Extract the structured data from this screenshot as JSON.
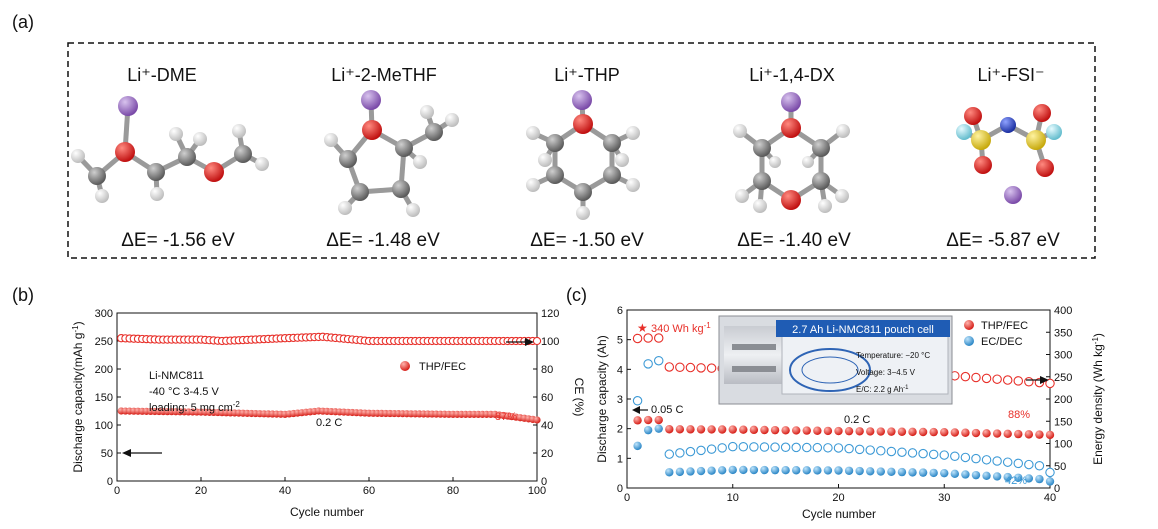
{
  "panel_a": {
    "label": "(a)",
    "molecules": [
      {
        "name": "Li⁺-DME",
        "energy": "ΔE= -1.56 eV",
        "icon": "dme-molecule"
      },
      {
        "name": "Li⁺-2-MeTHF",
        "energy": "ΔE= -1.48 eV",
        "icon": "methf-molecule"
      },
      {
        "name": "Li⁺-THP",
        "energy": "ΔE= -1.50 eV",
        "icon": "thp-molecule"
      },
      {
        "name": "Li⁺-1,4-DX",
        "energy": "ΔE= -1.40 eV",
        "icon": "dx-molecule"
      },
      {
        "name": "Li⁺-FSI⁻",
        "energy": "ΔE= -5.87 eV",
        "icon": "fsi-molecule"
      }
    ],
    "atom_colors": {
      "li": "#9b6fc4",
      "o": "#e0201e",
      "c": "#808080",
      "h": "#f2f2f2",
      "s": "#e8d21c",
      "n": "#2942c9",
      "f": "#8fd8e6"
    }
  },
  "panel_b": {
    "label": "(b)",
    "annotations": {
      "cell": "Li-NMC811",
      "conditions": "-40 °C   3-4.5 V",
      "loading": "loading: 5 mg cm",
      "loading_sup": "-2",
      "rate": "0.2 C",
      "retention": "87%",
      "legend": "THP/FEC"
    },
    "chart_data": {
      "type": "scatter",
      "xlabel": "Cycle number",
      "ylabel": "Discharge capacity(mAh g",
      "ylabel_sup": "-1",
      "ylabel_end": ")",
      "y2label": "CE (%)",
      "xlim": [
        0,
        100
      ],
      "ylim": [
        0,
        300
      ],
      "y2lim": [
        0,
        120
      ],
      "xticks": [
        "0",
        "20",
        "40",
        "60",
        "80",
        "100"
      ],
      "yticks": [
        "0",
        "50",
        "100",
        "150",
        "200",
        "250",
        "300"
      ],
      "y2ticks": [
        "0",
        "20",
        "40",
        "60",
        "80",
        "100",
        "120"
      ],
      "series": [
        {
          "name": "THP/FEC",
          "axis": "left",
          "style": "filled",
          "color": "#e8302a",
          "points": [
            [
              1,
              125
            ],
            [
              20,
              123
            ],
            [
              40,
              119
            ],
            [
              48,
              125
            ],
            [
              60,
              121
            ],
            [
              80,
              119
            ],
            [
              90,
              119
            ],
            [
              95,
              114
            ],
            [
              100,
              109
            ]
          ]
        },
        {
          "name": "THP/FEC",
          "axis": "right",
          "style": "open",
          "color": "#e8302a",
          "points": [
            [
              1,
              102
            ],
            [
              10,
              101
            ],
            [
              20,
              101
            ],
            [
              25,
              100
            ],
            [
              40,
              102
            ],
            [
              49,
              103
            ],
            [
              60,
              100
            ],
            [
              80,
              100
            ],
            [
              100,
              100
            ]
          ]
        }
      ]
    }
  },
  "panel_c": {
    "label": "(c)",
    "annotations": {
      "energy": "340 Wh kg",
      "energy_sup": "-1",
      "rate1": "0.05 C",
      "rate2": "0.2 C",
      "retention_thp": "88%",
      "retention_ec": "42%",
      "legend": [
        "THP/FEC",
        "EC/DEC"
      ]
    },
    "pouch": {
      "title": "2.7 Ah Li-NMC811 pouch cell",
      "temperature": "Temperature: −20 °C",
      "voltage": "Voltage: 3−4.5 V",
      "ec_ratio": "E/C: 2.2 g Ah",
      "ec_ratio_sup": "-1"
    },
    "chart_data": {
      "type": "scatter",
      "xlabel": "Cycle number",
      "ylabel": "Discharge capacity (Ah)",
      "y2label": "Energy density (Wh kg",
      "y2label_sup": "-1",
      "y2label_end": ")",
      "xlim": [
        0,
        40
      ],
      "ylim": [
        0,
        6
      ],
      "y2lim": [
        0,
        400
      ],
      "xticks": [
        "0",
        "10",
        "20",
        "30",
        "40"
      ],
      "yticks": [
        "0",
        "1",
        "2",
        "3",
        "4",
        "5",
        "6"
      ],
      "y2ticks": [
        "0",
        "50",
        "100",
        "150",
        "200",
        "250",
        "300",
        "350",
        "400"
      ],
      "series": [
        {
          "name": "THP/FEC",
          "axis": "left",
          "style": "filled",
          "color": "#e8302a",
          "points": [
            [
              1,
              2.28
            ],
            [
              2,
              2.29
            ],
            [
              3,
              2.29
            ],
            [
              4,
              1.98
            ],
            [
              10,
              1.97
            ],
            [
              20,
              1.92
            ],
            [
              30,
              1.88
            ],
            [
              40,
              1.79
            ]
          ]
        },
        {
          "name": "THP/FEC",
          "axis": "right",
          "style": "open",
          "color": "#e8302a",
          "points": [
            [
              1,
              336
            ],
            [
              2,
              337
            ],
            [
              3,
              337
            ],
            [
              4,
              272
            ],
            [
              10,
              268
            ],
            [
              20,
              261
            ],
            [
              30,
              254
            ],
            [
              40,
              235
            ]
          ]
        },
        {
          "name": "EC/DEC",
          "axis": "left",
          "style": "filled",
          "color": "#3d9ad6",
          "points": [
            [
              1,
              1.42
            ],
            [
              2,
              1.95
            ],
            [
              3,
              2.0
            ],
            [
              4,
              0.53
            ],
            [
              10,
              0.61
            ],
            [
              20,
              0.59
            ],
            [
              30,
              0.5
            ],
            [
              39,
              0.3
            ],
            [
              40,
              0.22
            ]
          ]
        },
        {
          "name": "EC/DEC",
          "axis": "right",
          "style": "open",
          "color": "#3d9ad6",
          "points": [
            [
              1,
              196
            ],
            [
              2,
              279
            ],
            [
              3,
              286
            ],
            [
              4,
              76
            ],
            [
              10,
              93
            ],
            [
              20,
              90
            ],
            [
              30,
              74
            ],
            [
              39,
              50
            ],
            [
              40,
              35
            ]
          ]
        }
      ]
    }
  }
}
